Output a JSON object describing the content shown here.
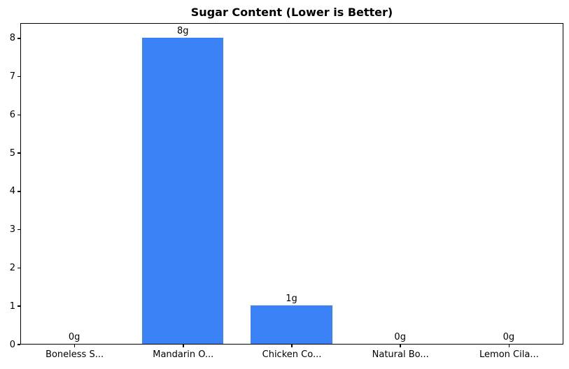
{
  "chart_data": {
    "type": "bar",
    "title": "Sugar Content (Lower is Better)",
    "categories": [
      "Boneless S...",
      "Mandarin O...",
      "Chicken Co...",
      "Natural Bo...",
      "Lemon Cila..."
    ],
    "values": [
      0,
      8,
      1,
      0,
      0
    ],
    "value_labels": [
      "0g",
      "8g",
      "1g",
      "0g",
      "0g"
    ],
    "xlabel": "",
    "ylabel": "",
    "ylim": [
      0,
      8.4
    ],
    "yticks": [
      0,
      1,
      2,
      3,
      4,
      5,
      6,
      7,
      8
    ],
    "grid": false,
    "legend": null,
    "bar_color": "#3b82f6",
    "axis_color": "#000000",
    "text_color": "#000000",
    "background_color": "#ffffff"
  }
}
